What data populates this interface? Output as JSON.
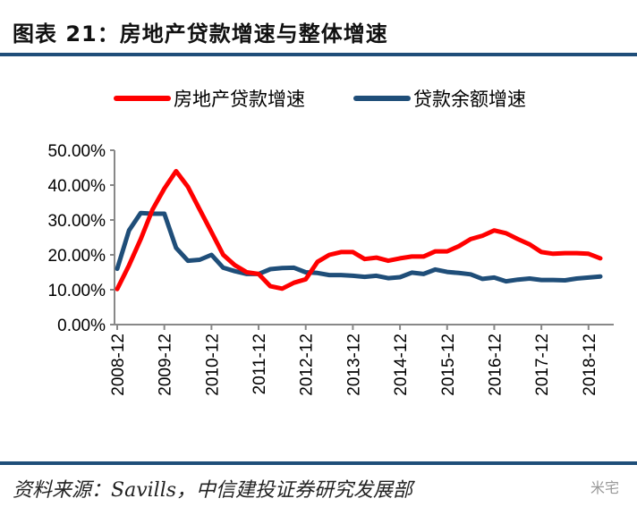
{
  "title": "图表 21：房地产贷款增速与整体增速",
  "source": "资料来源：Savills，中信建投证券研究发展部",
  "watermark": "米宅",
  "chart_data": {
    "type": "line",
    "title": "房地产贷款增速与整体增速",
    "xlabel": "",
    "ylabel": "",
    "ylim": [
      0,
      50
    ],
    "yticks": [
      "0.00%",
      "10.00%",
      "20.00%",
      "30.00%",
      "40.00%",
      "50.00%"
    ],
    "xticks": [
      "2008-12",
      "2009-12",
      "2010-12",
      "2011-12",
      "2012-12",
      "2013-12",
      "2014-12",
      "2015-12",
      "2016-12",
      "2017-12",
      "2018-12"
    ],
    "x_start": "2008-12",
    "x_step": "quarter",
    "legend_position": "top",
    "grid": false,
    "series": [
      {
        "name": "房地产贷款增速",
        "color": "#ff0000",
        "values": [
          10.2,
          17,
          24.5,
          33,
          39,
          44,
          39.5,
          33,
          26.5,
          20,
          17,
          15,
          14.5,
          11,
          10.3,
          12,
          13,
          18,
          20,
          20.8,
          20.8,
          18.8,
          19.2,
          18.3,
          19,
          19.5,
          19.5,
          21,
          21,
          22.5,
          24.5,
          25.5,
          27,
          26.2,
          24.5,
          23,
          20.8,
          20.3,
          20.5,
          20.5,
          20.3,
          19
        ]
      },
      {
        "name": "贷款余额增速",
        "color": "#1f4e79",
        "values": [
          16,
          27,
          32,
          31.8,
          31.8,
          22,
          18.3,
          18.6,
          20,
          16.3,
          15.3,
          14.5,
          14.5,
          15.9,
          16.2,
          16.3,
          15,
          14.8,
          14.2,
          14.2,
          14,
          13.7,
          14,
          13.3,
          13.6,
          14.9,
          14.5,
          15.8,
          15.1,
          14.8,
          14.4,
          13.1,
          13.5,
          12.4,
          12.9,
          13.2,
          12.8,
          12.8,
          12.7,
          13.2,
          13.5,
          13.8
        ]
      }
    ]
  }
}
